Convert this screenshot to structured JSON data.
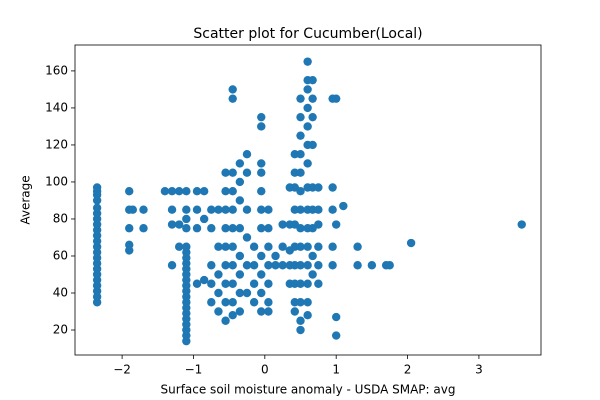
{
  "chart_data": {
    "type": "scatter",
    "title": "Scatter plot for Cucumber(Local)",
    "x_label": "Surface soil moisture anomaly  - USDA SMAP: avg",
    "y_label": "Average",
    "xlim": [
      -2.66,
      3.87
    ],
    "ylim": [
      6.5,
      174
    ],
    "xticks": [
      {
        "value": -2,
        "label": "−2"
      },
      {
        "value": -1,
        "label": "−1"
      },
      0,
      1,
      2,
      3
    ],
    "yticks": [
      20,
      40,
      60,
      80,
      100,
      120,
      140,
      160
    ],
    "color": "#1f77b4",
    "x": [
      -2.35,
      -2.35,
      -2.35,
      -2.35,
      -2.35,
      -2.35,
      -2.35,
      -2.35,
      -2.35,
      -2.35,
      -2.35,
      -2.35,
      -2.35,
      -2.35,
      -2.35,
      -2.35,
      -2.35,
      -2.35,
      -2.35,
      -2.35,
      -2.35,
      -2.35,
      -1.9,
      -1.9,
      -1.9,
      -1.9,
      -1.9,
      -1.85,
      -1.7,
      -1.7,
      -1.4,
      -1.3,
      -1.3,
      -1.3,
      -1.3,
      -1.2,
      -1.2,
      -1.2,
      -1.1,
      -1.1,
      -1.1,
      -1.1,
      -1.1,
      -1.1,
      -1.1,
      -1.1,
      -1.1,
      -1.1,
      -1.1,
      -1.1,
      -1.1,
      -1.1,
      -1.1,
      -1.1,
      -1.1,
      -1.1,
      -1.1,
      -1.1,
      -1.1,
      -1.1,
      -0.95,
      -0.95,
      -0.95,
      -0.95,
      -0.85,
      -0.85,
      -0.85,
      -0.75,
      -0.75,
      -0.75,
      -0.75,
      -0.75,
      -0.65,
      -0.65,
      -0.65,
      -0.65,
      -0.65,
      -0.55,
      -0.55,
      -0.55,
      -0.55,
      -0.55,
      -0.55,
      -0.55,
      -0.55,
      -0.55,
      -0.45,
      -0.45,
      -0.45,
      -0.45,
      -0.45,
      -0.45,
      -0.45,
      -0.45,
      -0.45,
      -0.45,
      -0.45,
      -0.35,
      -0.35,
      -0.35,
      -0.35,
      -0.35,
      -0.35,
      -0.35,
      -0.35,
      -0.25,
      -0.25,
      -0.25,
      -0.25,
      -0.25,
      -0.25,
      -0.15,
      -0.15,
      -0.15,
      -0.15,
      -0.05,
      -0.05,
      -0.05,
      -0.05,
      -0.05,
      -0.05,
      -0.05,
      -0.05,
      -0.05,
      -0.05,
      -0.05,
      0.05,
      0.05,
      0.05,
      0.05,
      0.05,
      0.05,
      0.05,
      0.15,
      0.15,
      0.25,
      0.25,
      0.25,
      0.35,
      0.35,
      0.35,
      0.35,
      0.35,
      0.42,
      0.42,
      0.42,
      0.42,
      0.42,
      0.42,
      0.42,
      0.42,
      0.42,
      0.42,
      0.5,
      0.5,
      0.5,
      0.5,
      0.5,
      0.5,
      0.5,
      0.5,
      0.5,
      0.5,
      0.5,
      0.5,
      0.5,
      0.5,
      0.6,
      0.6,
      0.6,
      0.6,
      0.6,
      0.6,
      0.6,
      0.6,
      0.6,
      0.6,
      0.6,
      0.6,
      0.6,
      0.6,
      0.6,
      0.67,
      0.67,
      0.67,
      0.67,
      0.67,
      0.67,
      0.67,
      0.67,
      0.67,
      0.75,
      0.75,
      0.75,
      0.75,
      0.75,
      0.75,
      0.95,
      0.95,
      0.95,
      0.95,
      0.95,
      1.0,
      1.0,
      1.0,
      1.0,
      1.1,
      1.3,
      1.3,
      1.5,
      1.7,
      1.75,
      2.05,
      3.6
    ],
    "y": [
      35,
      38,
      41,
      44,
      47,
      50,
      53,
      56,
      59,
      62,
      65,
      68,
      71,
      74,
      77,
      80,
      83,
      86,
      90,
      93,
      95,
      97,
      63,
      66,
      75,
      85,
      95,
      85,
      75,
      85,
      95,
      95,
      85,
      77,
      55,
      95,
      77,
      65,
      14,
      17,
      20,
      23,
      26,
      29,
      32,
      35,
      38,
      41,
      44,
      47,
      50,
      53,
      56,
      59,
      62,
      65,
      75,
      80,
      85,
      95,
      95,
      85,
      75,
      45,
      95,
      80,
      47,
      85,
      75,
      55,
      45,
      35,
      85,
      65,
      50,
      40,
      30,
      105,
      95,
      85,
      75,
      65,
      55,
      45,
      35,
      25,
      150,
      145,
      105,
      95,
      85,
      75,
      65,
      55,
      45,
      35,
      28,
      110,
      100,
      90,
      75,
      60,
      50,
      40,
      30,
      115,
      105,
      85,
      70,
      55,
      40,
      65,
      55,
      45,
      35,
      135,
      130,
      110,
      105,
      95,
      85,
      75,
      60,
      50,
      40,
      30,
      85,
      75,
      65,
      55,
      45,
      35,
      30,
      60,
      55,
      77,
      65,
      55,
      97,
      77,
      63,
      55,
      45,
      115,
      105,
      97,
      85,
      77,
      65,
      55,
      45,
      35,
      30,
      145,
      135,
      125,
      115,
      105,
      95,
      85,
      75,
      65,
      55,
      45,
      35,
      25,
      20,
      165,
      155,
      150,
      140,
      130,
      120,
      110,
      97,
      85,
      75,
      65,
      55,
      45,
      35,
      28,
      155,
      145,
      135,
      120,
      97,
      85,
      75,
      60,
      50,
      97,
      85,
      77,
      65,
      55,
      45,
      145,
      97,
      85,
      65,
      55,
      145,
      77,
      27,
      17,
      87,
      65,
      55,
      55,
      55,
      55,
      67,
      77
    ]
  }
}
